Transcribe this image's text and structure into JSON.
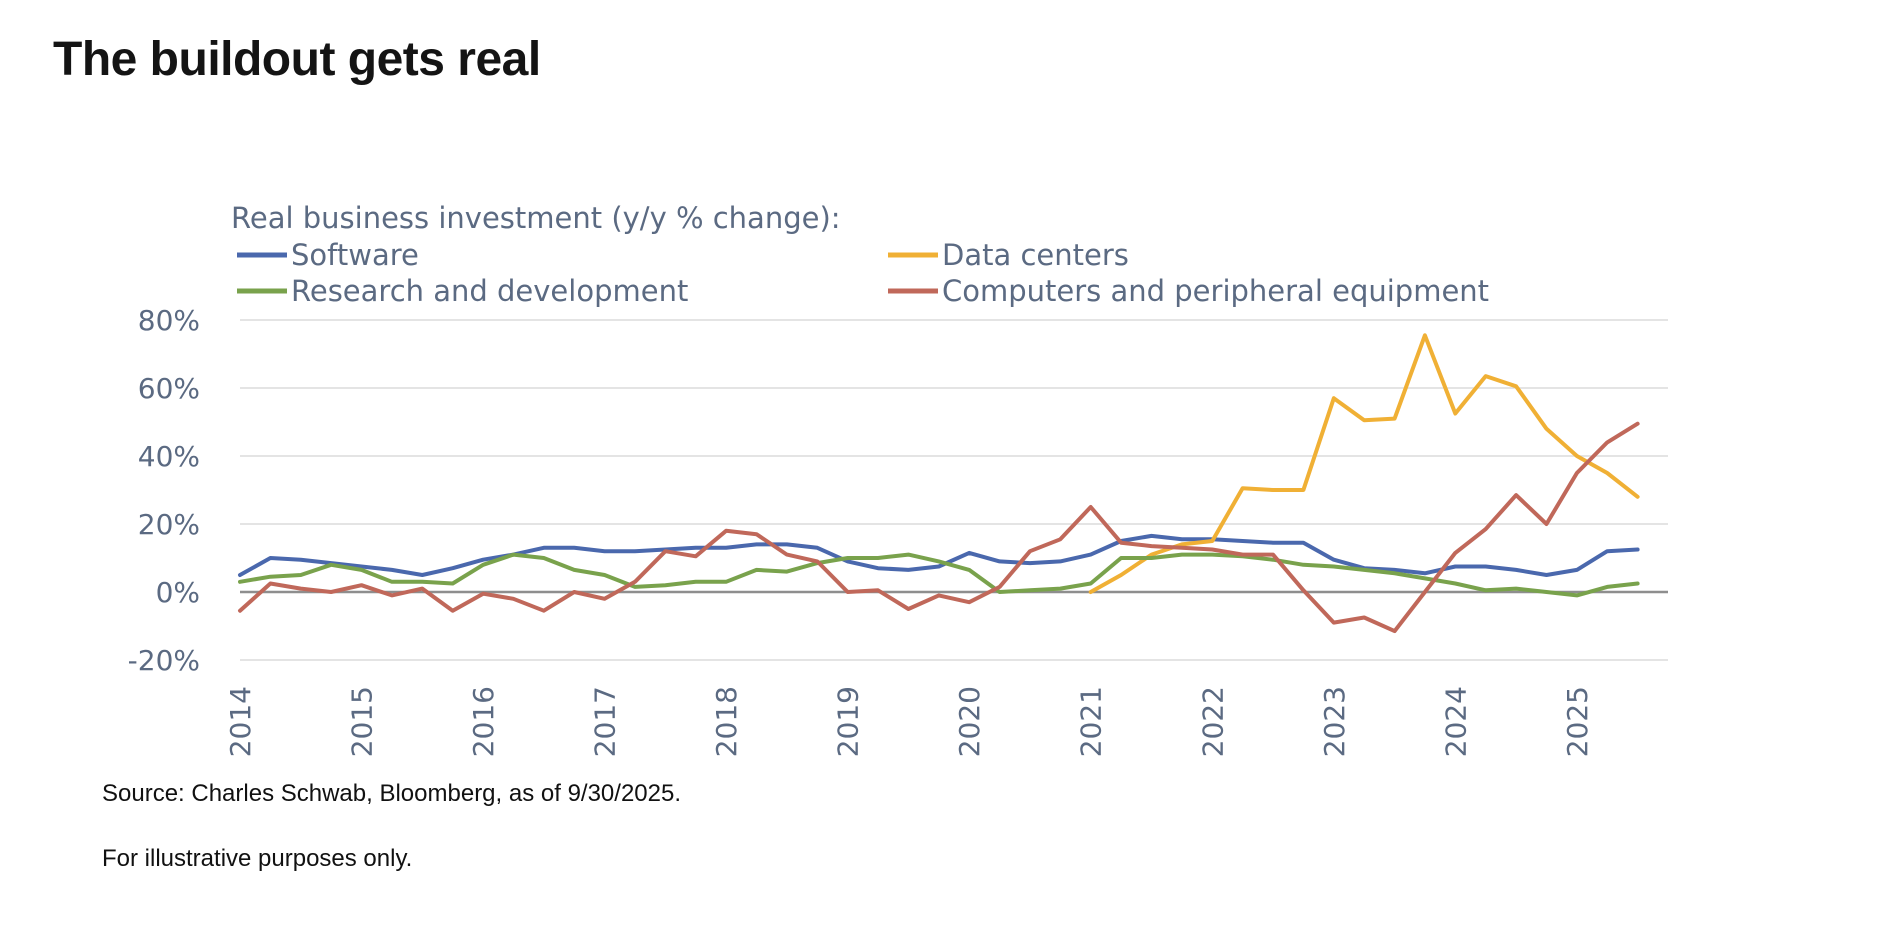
{
  "page": {
    "title": "The buildout gets real",
    "source": "Source: Charles Schwab, Bloomberg, as of 9/30/2025.",
    "disclaimer": "For illustrative purposes only."
  },
  "chart_data": {
    "type": "line",
    "title": "Real business investment (y/y % change):",
    "xlabel": "",
    "ylabel": "",
    "x_ticks": [
      "2014",
      "2015",
      "2016",
      "2017",
      "2018",
      "2019",
      "2020",
      "2021",
      "2022",
      "2023",
      "2024",
      "2025"
    ],
    "xlim": [
      2014,
      2025.75
    ],
    "y_ticks": [
      "80%",
      "60%",
      "40%",
      "20%",
      "0%",
      "-20%"
    ],
    "ylim": [
      -20,
      80
    ],
    "grid": true,
    "legend": "top",
    "series": [
      {
        "name": "Software",
        "color": "#4a68ad",
        "x": [
          2014,
          2014.25,
          2014.5,
          2014.75,
          2015,
          2015.25,
          2015.5,
          2015.75,
          2016,
          2016.25,
          2016.5,
          2016.75,
          2017,
          2017.25,
          2017.5,
          2017.75,
          2018,
          2018.25,
          2018.5,
          2018.75,
          2019,
          2019.25,
          2019.5,
          2019.75,
          2020,
          2020.25,
          2020.5,
          2020.75,
          2021,
          2021.25,
          2021.5,
          2021.75,
          2022,
          2022.25,
          2022.5,
          2022.75,
          2023,
          2023.25,
          2023.5,
          2023.75,
          2024,
          2024.25,
          2024.5,
          2024.75,
          2025,
          2025.25,
          2025.5
        ],
        "values": [
          5,
          10,
          9.5,
          8.5,
          7.5,
          6.5,
          5,
          7,
          9.5,
          11,
          13,
          13,
          12,
          12,
          12.5,
          13,
          13,
          14,
          14,
          13,
          9,
          7,
          6.5,
          7.5,
          11.5,
          9,
          8.5,
          9,
          11,
          15,
          16.5,
          15.5,
          15.5,
          15,
          14.5,
          14.5,
          9.5,
          7,
          6.5,
          5.5,
          7.5,
          7.5,
          6.5,
          5,
          6.5,
          12,
          12.5
        ]
      },
      {
        "name": "Data centers",
        "color": "#f0b035",
        "x": [
          2021,
          2021.25,
          2021.5,
          2021.75,
          2022,
          2022.25,
          2022.5,
          2022.75,
          2023,
          2023.25,
          2023.5,
          2023.75,
          2024,
          2024.25,
          2024.5,
          2024.75,
          2025,
          2025.25,
          2025.5
        ],
        "values": [
          0,
          5,
          11,
          14,
          15,
          30.5,
          30,
          30,
          57,
          50.5,
          51,
          75.5,
          52.5,
          63.5,
          60.5,
          48,
          40,
          35,
          28
        ]
      },
      {
        "name": "Research and development",
        "color": "#79a24c",
        "x": [
          2014,
          2014.25,
          2014.5,
          2014.75,
          2015,
          2015.25,
          2015.5,
          2015.75,
          2016,
          2016.25,
          2016.5,
          2016.75,
          2017,
          2017.25,
          2017.5,
          2017.75,
          2018,
          2018.25,
          2018.5,
          2018.75,
          2019,
          2019.25,
          2019.5,
          2019.75,
          2020,
          2020.25,
          2020.5,
          2020.75,
          2021,
          2021.25,
          2021.5,
          2021.75,
          2022,
          2022.25,
          2022.5,
          2022.75,
          2023,
          2023.25,
          2023.5,
          2023.75,
          2024,
          2024.25,
          2024.5,
          2024.75,
          2025,
          2025.25,
          2025.5
        ],
        "values": [
          3,
          4.5,
          5,
          8,
          6.5,
          3,
          3,
          2.5,
          8,
          11,
          10,
          6.5,
          5,
          1.5,
          2,
          3,
          3,
          6.5,
          6,
          8.5,
          10,
          10,
          11,
          9,
          6.5,
          0,
          0.5,
          1,
          2.5,
          10,
          10,
          11,
          11,
          10.5,
          9.5,
          8,
          7.5,
          6.5,
          5.5,
          4,
          2.5,
          0.5,
          1,
          0,
          -1,
          1.5,
          2.5
        ]
      },
      {
        "name": "Computers and peripheral equipment",
        "color": "#c0685a",
        "x": [
          2014,
          2014.25,
          2014.5,
          2014.75,
          2015,
          2015.25,
          2015.5,
          2015.75,
          2016,
          2016.25,
          2016.5,
          2016.75,
          2017,
          2017.25,
          2017.5,
          2017.75,
          2018,
          2018.25,
          2018.5,
          2018.75,
          2019,
          2019.25,
          2019.5,
          2019.75,
          2020,
          2020.25,
          2020.5,
          2020.75,
          2021,
          2021.25,
          2021.5,
          2021.75,
          2022,
          2022.25,
          2022.5,
          2022.75,
          2023,
          2023.25,
          2023.5,
          2023.75,
          2024,
          2024.25,
          2024.5,
          2024.75,
          2025,
          2025.25,
          2025.5
        ],
        "values": [
          -5.5,
          2.5,
          1,
          0,
          2,
          -1,
          1,
          -5.5,
          -0.5,
          -2,
          -5.5,
          0,
          -2,
          3,
          12,
          10.5,
          18,
          17,
          11,
          9,
          0,
          0.5,
          -5,
          -1,
          -3,
          1.5,
          12,
          15.5,
          25,
          14.5,
          13.5,
          13,
          12.5,
          11,
          11,
          0.5,
          -9,
          -7.5,
          -11.5,
          0,
          11.5,
          18.5,
          28.5,
          20,
          35,
          44,
          49.5
        ]
      }
    ]
  }
}
